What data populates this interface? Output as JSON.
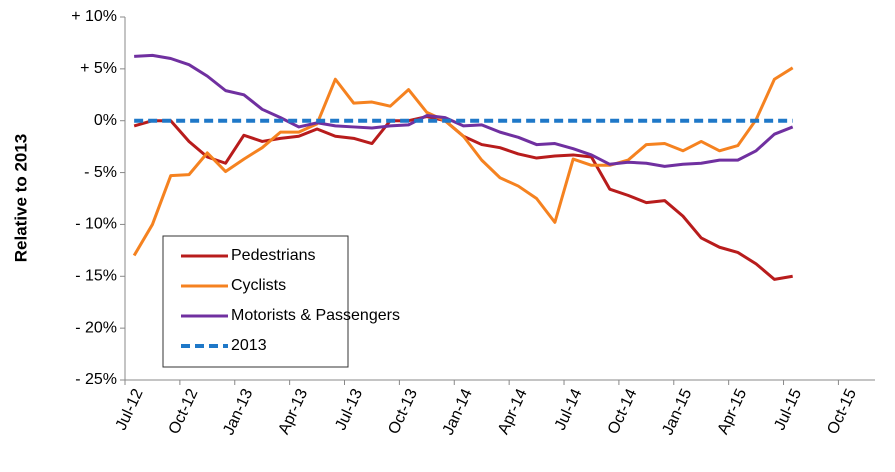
{
  "chart_data": {
    "type": "line",
    "y_label": "Relative to 2013",
    "categories": [
      "Jul-12",
      null,
      null,
      "Oct-12",
      null,
      null,
      "Jan-13",
      null,
      null,
      "Apr-13",
      null,
      null,
      "Jul-13",
      null,
      null,
      "Oct-13",
      null,
      null,
      "Jan-14",
      null,
      null,
      "Apr-14",
      null,
      null,
      "Jul-14",
      null,
      null,
      "Oct-14",
      null,
      null,
      "Jan-15",
      null,
      null,
      "Apr-15",
      null,
      null,
      "Jul-15",
      null,
      null,
      "Oct-15",
      null
    ],
    "series": [
      {
        "name": "Pedestrians",
        "color": "#b81c1c",
        "values": [
          -0.5,
          0,
          0,
          -2,
          -3.5,
          -4.1,
          -1.4,
          -2,
          -1.7,
          -1.5,
          -0.8,
          -1.5,
          -1.7,
          -2.2,
          0,
          0,
          0.4,
          0,
          -1.5,
          -2.3,
          -2.6,
          -3.2,
          -3.6,
          -3.4,
          -3.3,
          -3.5,
          -6.6,
          -7.2,
          -7.9,
          -7.7,
          -9.2,
          -11.3,
          -12.2,
          -12.7,
          -13.8,
          -15.3,
          -15.0,
          null,
          null,
          null,
          null
        ]
      },
      {
        "name": "Cyclists",
        "color": "#f58220",
        "values": [
          -13,
          -10,
          -5.3,
          -5.2,
          -3.1,
          -4.9,
          -3.7,
          -2.6,
          -1.1,
          -1.1,
          -0.3,
          4.0,
          1.7,
          1.8,
          1.4,
          3.0,
          0.8,
          0,
          -1.5,
          -3.8,
          -5.5,
          -6.3,
          -7.5,
          -9.8,
          -3.7,
          -4.3,
          -4.3,
          -3.8,
          -2.3,
          -2.2,
          -2.9,
          -2.0,
          -2.9,
          -2.4,
          0.1,
          4.0,
          5.1,
          null,
          null,
          null,
          null
        ]
      },
      {
        "name": "Motorists & Passengers",
        "color": "#7030a0",
        "values": [
          6.2,
          6.3,
          6.0,
          5.4,
          4.3,
          2.9,
          2.5,
          1.1,
          0.3,
          -0.6,
          -0.2,
          -0.5,
          -0.6,
          -0.7,
          -0.5,
          -0.4,
          0.5,
          0.3,
          -0.5,
          -0.4,
          -1.1,
          -1.6,
          -2.3,
          -2.2,
          -2.7,
          -3.3,
          -4.2,
          -4.0,
          -4.1,
          -4.4,
          -4.2,
          -4.1,
          -3.8,
          -3.8,
          -2.9,
          -1.3,
          -0.6,
          null,
          null,
          null,
          null
        ]
      },
      {
        "name": "2013",
        "color": "#1f78c8",
        "dashed": true,
        "values": [
          0,
          0,
          0,
          0,
          0,
          0,
          0,
          0,
          0,
          0,
          0,
          0,
          0,
          0,
          0,
          0,
          0,
          0,
          0,
          0,
          0,
          0,
          0,
          0,
          0,
          0,
          0,
          0,
          0,
          0,
          0,
          0,
          0,
          0,
          0,
          0,
          0,
          null,
          null,
          null,
          null
        ]
      }
    ],
    "ylim": [
      -25,
      10
    ],
    "yticks": [
      {
        "value": 10,
        "label": "+ 10%"
      },
      {
        "value": 5,
        "label": "+ 5%"
      },
      {
        "value": 0,
        "label": "0%"
      },
      {
        "value": -5,
        "label": "- 5%"
      },
      {
        "value": -10,
        "label": "- 10%"
      },
      {
        "value": -15,
        "label": "- 15%"
      },
      {
        "value": -20,
        "label": "- 20%"
      },
      {
        "value": -25,
        "label": "- 25%"
      }
    ],
    "legend": "bottom-left"
  }
}
